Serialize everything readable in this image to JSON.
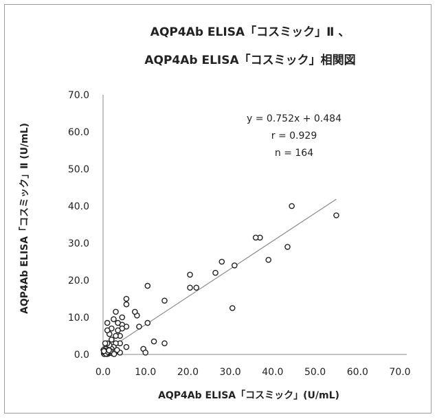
{
  "chart_data": {
    "type": "scatter",
    "title_line1": "AQP4Ab ELISA「コスミック」Ⅱ 、",
    "title_line2": "AQP4Ab ELISA「コスミック」相関図",
    "xlabel": "AQP4Ab ELISA「コスミック」(U/mL)",
    "ylabel": "AQP4Ab ELISA「コスミック」Ⅱ (U/mL)",
    "xlim": [
      0,
      70
    ],
    "ylim": [
      0,
      70
    ],
    "x_ticks": [
      "0.0",
      "10.0",
      "20.0",
      "30.0",
      "40.0",
      "50.0",
      "60.0",
      "70.0"
    ],
    "y_ticks": [
      "0.0",
      "10.0",
      "20.0",
      "30.0",
      "40.0",
      "50.0",
      "60.0",
      "70.0"
    ],
    "annotations": [
      "y = 0.752x + 0.484",
      "r = 0.929",
      "n = 164"
    ],
    "regression": {
      "slope": 0.752,
      "intercept": 0.484,
      "x_range": [
        0,
        55
      ]
    },
    "colors": {
      "marker": "#222222",
      "trendline": "#8a8a8a",
      "axis": "#8a8a8a"
    },
    "points": [
      [
        55,
        37.5
      ],
      [
        44.5,
        40
      ],
      [
        43.5,
        29
      ],
      [
        39,
        25.5
      ],
      [
        37,
        31.5
      ],
      [
        36,
        31.5
      ],
      [
        31,
        24
      ],
      [
        30.5,
        12.5
      ],
      [
        28,
        25
      ],
      [
        26.5,
        22
      ],
      [
        22,
        18
      ],
      [
        20.5,
        21.5
      ],
      [
        20.5,
        18
      ],
      [
        14.5,
        14.5
      ],
      [
        14.5,
        3
      ],
      [
        12,
        3.5
      ],
      [
        10.5,
        18.5
      ],
      [
        10.5,
        8.5
      ],
      [
        9.5,
        1.5
      ],
      [
        10,
        0.5
      ],
      [
        8.5,
        7.5
      ],
      [
        8,
        10.5
      ],
      [
        7.5,
        11.5
      ],
      [
        5.5,
        15
      ],
      [
        5.5,
        13.5
      ],
      [
        5.5,
        7.5
      ],
      [
        5.5,
        2
      ],
      [
        4.5,
        10
      ],
      [
        4.5,
        8
      ],
      [
        4.5,
        7
      ],
      [
        4,
        5
      ],
      [
        4,
        3
      ],
      [
        4,
        0.5
      ],
      [
        3.5,
        8.5
      ],
      [
        3.5,
        6.5
      ],
      [
        3,
        11.5
      ],
      [
        3,
        5
      ],
      [
        3,
        3
      ],
      [
        2.5,
        9.5
      ],
      [
        2.5,
        2
      ],
      [
        2,
        7
      ],
      [
        2,
        4
      ],
      [
        2,
        1.5
      ],
      [
        1.5,
        5.5
      ],
      [
        1.5,
        2.5
      ],
      [
        1,
        8.5
      ],
      [
        1,
        6.5
      ],
      [
        1,
        3
      ],
      [
        0.5,
        3
      ],
      [
        0.5,
        1.5
      ],
      [
        0.3,
        0.8
      ],
      [
        0.5,
        0.3
      ],
      [
        0.2,
        0.2
      ],
      [
        0.8,
        0.4
      ],
      [
        1.2,
        0.2
      ],
      [
        0.1,
        1.2
      ],
      [
        0.6,
        0.9
      ],
      [
        1.5,
        0.5
      ],
      [
        2.2,
        0.3
      ],
      [
        0.3,
        0.1
      ],
      [
        0.9,
        0.1
      ],
      [
        1.8,
        0.9
      ],
      [
        2.8,
        0.6
      ],
      [
        3.3,
        1.2
      ],
      [
        0.4,
        0.5
      ],
      [
        0.7,
        0.2
      ],
      [
        1.1,
        0.7
      ],
      [
        0.2,
        0.9
      ],
      [
        1.4,
        1.1
      ],
      [
        2.6,
        0.1
      ]
    ]
  }
}
